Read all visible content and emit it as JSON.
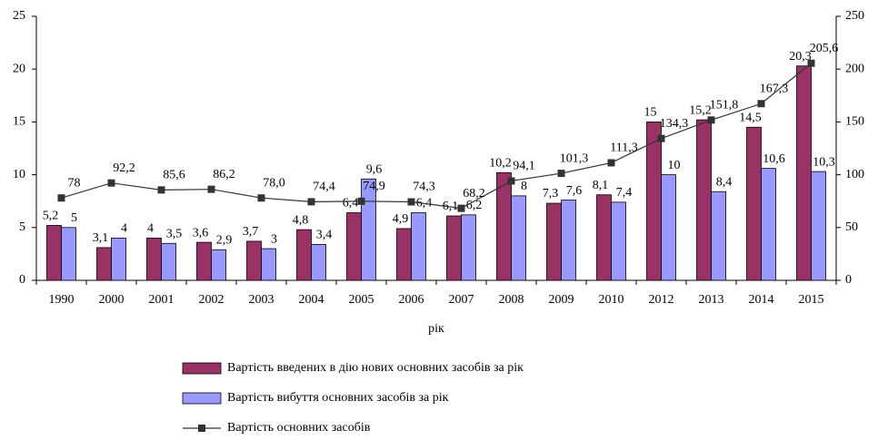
{
  "chart_data": {
    "type": "bar",
    "x_label": "рік",
    "categories": [
      "1990",
      "2000",
      "2001",
      "2002",
      "2003",
      "2004",
      "2005",
      "2006",
      "2007",
      "2008",
      "2009",
      "2010",
      "2012",
      "2013",
      "2014",
      "2015"
    ],
    "series": [
      {
        "name": "Вартість введених в дію нових основних засобів за рік",
        "type": "bar",
        "color": "#993366",
        "values": [
          5.2,
          3.1,
          4,
          3.6,
          3.7,
          4.8,
          6.4,
          4.9,
          6.1,
          10.2,
          7.3,
          8.1,
          15,
          15.2,
          14.5,
          20.3
        ],
        "value_labels": [
          "5,2",
          "3,1",
          "4",
          "3,6",
          "3,7",
          "4,8",
          "6,4",
          "4,9",
          "6,1",
          "10,2",
          "7,3",
          "8,1",
          "15",
          "15,2",
          "14,5",
          "20,3"
        ]
      },
      {
        "name": "Вартість вибуття основних засобів за рік",
        "type": "bar",
        "color": "#9999ff",
        "values": [
          5,
          4,
          3.5,
          2.9,
          3,
          3.4,
          9.6,
          6.4,
          6.2,
          8,
          7.6,
          7.4,
          10,
          8.4,
          10.6,
          10.3
        ],
        "value_labels": [
          "5",
          "4",
          "3,5",
          "2,9",
          "3",
          "3,4",
          "9,6",
          "6,4",
          "6,2",
          "8",
          "7,6",
          "7,4",
          "10",
          "8,4",
          "10,6",
          "10,3"
        ]
      },
      {
        "name": "Вартість основних засобів",
        "type": "line",
        "axis": "y2",
        "color": "#333333",
        "values": [
          78,
          92.2,
          85.6,
          86.2,
          78,
          74.4,
          74.9,
          74.3,
          68.2,
          94.1,
          101.3,
          111.3,
          134.3,
          151.8,
          167.3,
          205.6
        ],
        "value_labels": [
          "78",
          "92,2",
          "85,6",
          "86,2",
          "78,0",
          "74,4",
          "74,9",
          "74,3",
          "68,2",
          "94,1",
          "101,3",
          "111,3",
          "134,3",
          "151,8",
          "167,3",
          "205,6"
        ]
      }
    ],
    "ylim": [
      0,
      25
    ],
    "yticks": [
      0,
      5,
      10,
      15,
      20,
      25
    ],
    "y2lim": [
      0,
      250
    ],
    "y2ticks": [
      0,
      50,
      100,
      150,
      200,
      250
    ]
  }
}
